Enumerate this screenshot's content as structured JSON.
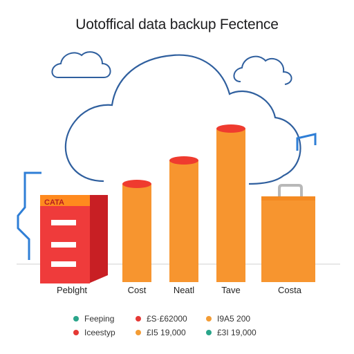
{
  "title": "Uotoffical data backup Fectence",
  "cabinet_label": "CATA",
  "categories": [
    "Peblght",
    "Cost",
    "Neatl",
    "Tave",
    "Costa"
  ],
  "colors": {
    "bar": "#f7952f",
    "bar_top": "#ff8a1e",
    "bar_cap": "#ef3b2f",
    "cabinet": "#ef3b3b",
    "cloud_stroke": "#2f5f9e",
    "circuit": "#2e7ed6",
    "legend_green": "#2aa58a",
    "legend_red": "#e53935",
    "legend_orange": "#f39c35"
  },
  "legend": [
    {
      "label": "Feeping",
      "color": "#2aa58a"
    },
    {
      "label": "Iceestyp",
      "color": "#e53935"
    },
    {
      "label": "£S·£62000",
      "color": "#e53935"
    },
    {
      "label": "£I5 19,000",
      "color": "#f39c35"
    },
    {
      "label": "I9A5 200",
      "color": "#f39c35"
    },
    {
      "label": "£3I 19,000",
      "color": "#2aa58a"
    }
  ]
}
